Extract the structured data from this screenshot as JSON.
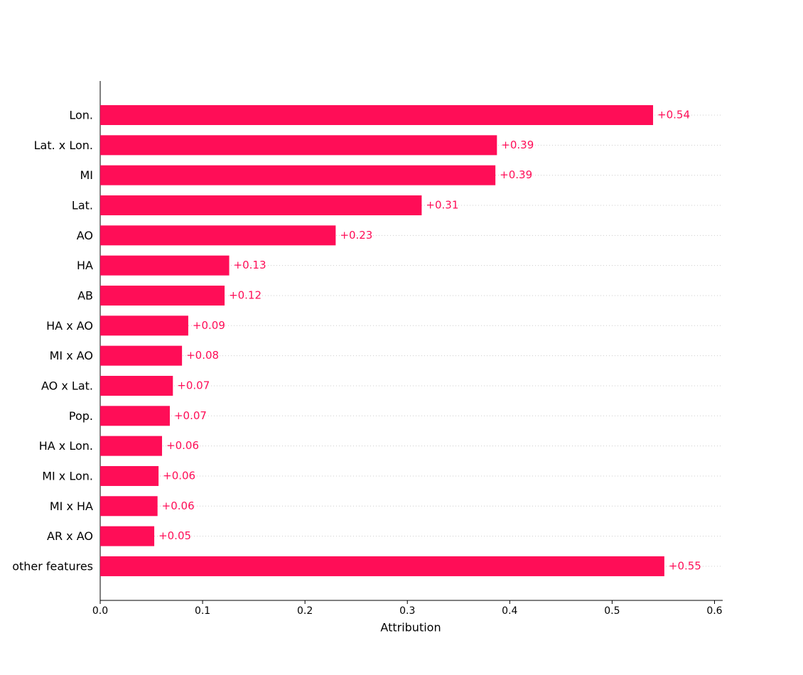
{
  "chart_data": {
    "type": "barh",
    "xlabel": "Attribution",
    "categories": [
      "Lon.",
      "Lat. x Lon.",
      "MI",
      "Lat.",
      "AO",
      "HA",
      "AB",
      "HA x AO",
      "MI x AO",
      "AO x Lat.",
      "Pop.",
      "HA x Lon.",
      "MI x Lon.",
      "MI x HA",
      "AR x AO",
      "other features"
    ],
    "values": [
      0.54,
      0.3875,
      0.386,
      0.314,
      0.23,
      0.126,
      0.1215,
      0.086,
      0.0799,
      0.071,
      0.068,
      0.0604,
      0.057,
      0.056,
      0.0528,
      0.551
    ],
    "value_labels": [
      "+0.54",
      "+0.39",
      "+0.39",
      "+0.31",
      "+0.23",
      "+0.13",
      "+0.12",
      "+0.09",
      "+0.08",
      "+0.07",
      "+0.07",
      "+0.06",
      "+0.06",
      "+0.06",
      "+0.05",
      "+0.55"
    ],
    "color": "#ff0d57",
    "xlim": [
      0,
      0.608
    ],
    "xticks": [
      {
        "value": 0,
        "label": "0.0"
      },
      0.1,
      0.2,
      0.3,
      0.4,
      0.5,
      0.6
    ],
    "grid": true
  }
}
